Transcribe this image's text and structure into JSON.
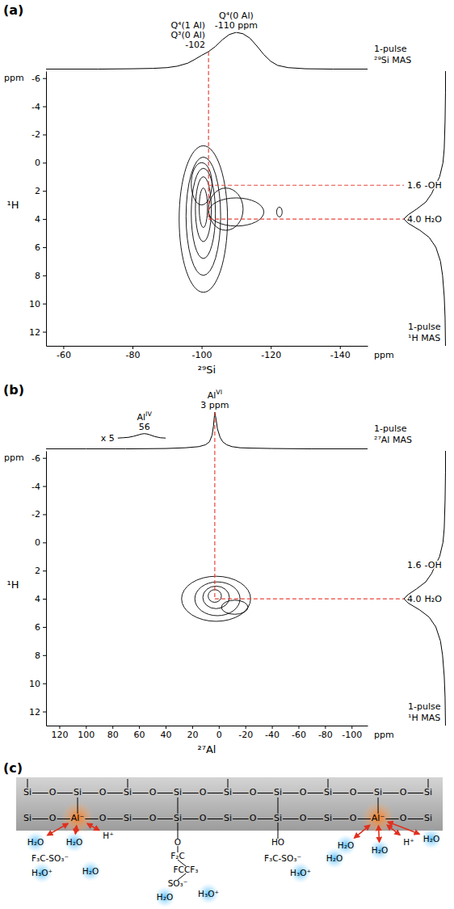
{
  "chart_data": [
    {
      "type": "contour",
      "panel_label": "(a)",
      "color": "#000000",
      "xlabel": "²⁹Si",
      "ylabel": "¹H",
      "x_unit_label": "ppm",
      "y_unit_label": "ppm",
      "xlim": [
        -55,
        -148
      ],
      "xticks": [
        -60,
        -80,
        -100,
        -120,
        -140
      ],
      "ylim": [
        -6.5,
        13
      ],
      "yticks": [
        -6,
        -4,
        -2,
        0,
        2,
        4,
        6,
        8,
        10,
        12
      ],
      "contours": [
        {
          "x": -100.5,
          "y": 4.0,
          "x_halfwidth": 7,
          "y_halfwidth": 5.2
        },
        {
          "x": -100.5,
          "y": 3.8,
          "x_halfwidth": 5,
          "y_halfwidth": 4.2
        },
        {
          "x": -100.5,
          "y": 3.6,
          "x_halfwidth": 3.5,
          "y_halfwidth": 3.2
        },
        {
          "x": -100.5,
          "y": 3.3,
          "x_halfwidth": 2.3,
          "y_halfwidth": 2.3
        },
        {
          "x": -100.5,
          "y": 3.2,
          "x_halfwidth": 1.2,
          "y_halfwidth": 1.4
        },
        {
          "x": -100,
          "y": 1.5,
          "x_halfwidth": 3,
          "y_halfwidth": 1.5
        },
        {
          "x": -110,
          "y": 3.5,
          "x_halfwidth": 8,
          "y_halfwidth": 1.0
        },
        {
          "x": -107,
          "y": 3.3,
          "x_halfwidth": 5,
          "y_halfwidth": 1.5
        },
        {
          "x": -122.5,
          "y": 3.5,
          "x_halfwidth": 0.8,
          "y_halfwidth": 0.35
        }
      ],
      "top_projection": {
        "name": "1-pulse ²⁹Si MAS",
        "intensity_lim": [
          0,
          1
        ],
        "x": [
          -55,
          -70,
          -80,
          -86,
          -90,
          -93,
          -96,
          -98,
          -100,
          -102,
          -104,
          -106,
          -108,
          -110,
          -112,
          -114,
          -116,
          -118,
          -120,
          -122,
          -125,
          -130,
          -138,
          -148
        ],
        "values": [
          0.01,
          0.01,
          0.02,
          0.03,
          0.05,
          0.09,
          0.17,
          0.27,
          0.38,
          0.48,
          0.62,
          0.8,
          0.94,
          1.0,
          0.96,
          0.84,
          0.63,
          0.4,
          0.22,
          0.11,
          0.05,
          0.02,
          0.01,
          0.01
        ],
        "annotations": [
          {
            "x": -110,
            "labels": [
              {
                "text": "Q⁴(0 Al)"
              }
            ],
            "position_label": "-110 ppm"
          },
          {
            "x": -102,
            "labels": [
              {
                "text": "Q⁴(1 Al)"
              },
              {
                "text": "Q³(0 Al)"
              }
            ],
            "position_label": "-102",
            "line_style": "dashed",
            "color": "#e8453c"
          }
        ]
      },
      "side_projection": {
        "name": "1-pulse ¹H MAS",
        "intensity_lim": [
          0,
          1
        ],
        "y": [
          -6.5,
          -5,
          -3,
          -1,
          0,
          1,
          1.6,
          2.2,
          2.8,
          3.3,
          3.7,
          4.0,
          4.3,
          4.8,
          5.3,
          6,
          7,
          8,
          9.5,
          11,
          13
        ],
        "values": [
          0.01,
          0.01,
          0.02,
          0.04,
          0.07,
          0.15,
          0.25,
          0.34,
          0.48,
          0.7,
          0.9,
          1.0,
          0.9,
          0.62,
          0.4,
          0.24,
          0.13,
          0.08,
          0.04,
          0.02,
          0.01
        ],
        "annotations": [
          {
            "y": 1.6,
            "position_label": "1.6",
            "labels": [
              {
                "text": "-OH"
              }
            ],
            "line_style": "dashed",
            "color": "#e8453c"
          },
          {
            "y": 4.0,
            "position_label": "4.0",
            "labels": [
              {
                "text": "H₂O"
              }
            ],
            "line_style": "dashed",
            "color": "#e8453c"
          }
        ]
      }
    },
    {
      "type": "contour",
      "panel_label": "(b)",
      "color": "#000000",
      "xlabel": "²⁷Al",
      "ylabel": "¹H",
      "x_unit_label": "ppm",
      "y_unit_label": "ppm",
      "xlim": [
        130,
        -112
      ],
      "xticks": [
        120,
        100,
        80,
        60,
        40,
        20,
        0,
        -20,
        -40,
        -60,
        -80,
        -100
      ],
      "ylim": [
        -6.5,
        13
      ],
      "yticks": [
        -6,
        -4,
        -2,
        0,
        2,
        4,
        6,
        8,
        10,
        12
      ],
      "contours": [
        {
          "x": 2,
          "y": 4.0,
          "x_halfwidth": 26,
          "y_halfwidth": 1.6
        },
        {
          "x": 1,
          "y": 4.0,
          "x_halfwidth": 17,
          "y_halfwidth": 1.2
        },
        {
          "x": 2,
          "y": 3.9,
          "x_halfwidth": 10,
          "y_halfwidth": 0.8
        },
        {
          "x": 3,
          "y": 3.8,
          "x_halfwidth": 5,
          "y_halfwidth": 0.45
        },
        {
          "x": -12,
          "y": 4.6,
          "x_halfwidth": 10,
          "y_halfwidth": 0.5
        }
      ],
      "top_projection": {
        "name": "1-pulse ²⁷Al MAS",
        "intensity_lim": [
          0,
          1
        ],
        "x": [
          130,
          100,
          70,
          40,
          25,
          15,
          10,
          7,
          5,
          4,
          3,
          2,
          1,
          -1,
          -3,
          -6,
          -10,
          -16,
          -25,
          -40,
          -70,
          -112
        ],
        "values": [
          0.01,
          0.01,
          0.01,
          0.02,
          0.04,
          0.07,
          0.12,
          0.2,
          0.38,
          0.62,
          1.0,
          0.8,
          0.55,
          0.32,
          0.2,
          0.12,
          0.07,
          0.04,
          0.03,
          0.02,
          0.01,
          0.01
        ],
        "annotations": [
          {
            "x": 3,
            "labels": [
              {
                "text": "Al",
                "superscript": "VI"
              }
            ],
            "position_label": "3 ppm",
            "line_style": "dashed",
            "color": "#e8453c"
          }
        ],
        "inset": {
          "label": "x 5",
          "x": [
            76,
            72,
            68,
            64,
            60,
            58,
            56,
            54,
            52,
            48,
            44,
            40
          ],
          "values": [
            0.3,
            0.31,
            0.32,
            0.35,
            0.39,
            0.41,
            0.42,
            0.41,
            0.39,
            0.34,
            0.31,
            0.3
          ],
          "annotations": [
            {
              "x": 56,
              "labels": [
                {
                  "text": "Al",
                  "superscript": "IV"
                }
              ],
              "position_label": "56"
            }
          ]
        }
      },
      "side_projection": {
        "name": "1-pulse ¹H MAS",
        "intensity_lim": [
          0,
          1
        ],
        "y": [
          -6.5,
          -5,
          -3,
          -1,
          0,
          1,
          1.6,
          2.2,
          2.8,
          3.3,
          3.7,
          4.0,
          4.3,
          4.8,
          5.3,
          6,
          7,
          8,
          9.5,
          11,
          13
        ],
        "values": [
          0.01,
          0.01,
          0.02,
          0.04,
          0.07,
          0.15,
          0.25,
          0.34,
          0.48,
          0.7,
          0.9,
          1.0,
          0.9,
          0.62,
          0.4,
          0.24,
          0.13,
          0.08,
          0.04,
          0.02,
          0.01
        ],
        "annotations": [
          {
            "y": 1.6,
            "position_label": "1.6",
            "labels": [
              {
                "text": "-OH"
              }
            ]
          },
          {
            "y": 4.0,
            "position_label": "4.0",
            "labels": [
              {
                "text": "H₂O"
              }
            ],
            "line_style": "dashed",
            "color": "#e8453c"
          }
        ]
      }
    }
  ],
  "diagram": {
    "panel_label": "(c)",
    "surface_rows": [
      [
        "Si",
        "O",
        "Si",
        "O",
        "Si",
        "O",
        "Si",
        "O",
        "Si",
        "O",
        "Si",
        "O",
        "Si",
        "O",
        "Si",
        "O",
        "Si"
      ],
      [
        "Si",
        "O",
        "Al⁻",
        "O",
        "Si",
        "O",
        "Si",
        "O",
        "Si",
        "O",
        "Si",
        "O",
        "Si",
        "O",
        "Al⁻",
        "O",
        "Si"
      ]
    ],
    "species": [
      "H₂O",
      "H₂O",
      "H⁺",
      "F₃C-SO₃⁻",
      "H₃O⁺",
      "H₂O",
      "O",
      "F₂C",
      "FCCF₃",
      "SO₃⁻",
      "H₂O",
      "H₃O⁺",
      "HO",
      "F₃C-SO₃⁻",
      "H₂O",
      "H₃O⁺",
      "H₂O",
      "H₂O",
      "H₂O",
      "H⁺"
    ]
  }
}
